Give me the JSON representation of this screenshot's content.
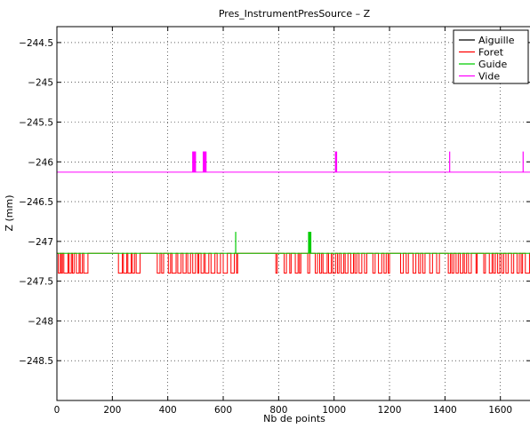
{
  "chart_data": {
    "type": "line",
    "title": "Pres_InstrumentPresSource – Z",
    "xlabel": "Nb de points",
    "ylabel": "Z (mm)",
    "xlim": [
      0,
      1710
    ],
    "ylim": [
      -249,
      -244.3
    ],
    "x_ticks": [
      0,
      200,
      400,
      600,
      800,
      1000,
      1200,
      1400,
      1600
    ],
    "y_ticks": [
      -244.5,
      -245,
      -245.5,
      -246,
      -246.5,
      -247,
      -247.5,
      -248,
      -248.5
    ],
    "y_tick_labels": [
      "−244.5",
      "−245",
      "−245.5",
      "−246",
      "−246.5",
      "−247",
      "−247.5",
      "−248",
      "−248.5"
    ],
    "grid": true,
    "legend_position": "top-right",
    "series": [
      {
        "name": "Aiguille",
        "color": "#000000",
        "points": []
      },
      {
        "name": "Foret",
        "color": "#ff0000",
        "base": -247.15,
        "low": -247.4,
        "low_intervals": [
          [
            5,
            12
          ],
          [
            16,
            20
          ],
          [
            25,
            40
          ],
          [
            44,
            52
          ],
          [
            56,
            62
          ],
          [
            70,
            80
          ],
          [
            84,
            92
          ],
          [
            97,
            112
          ],
          [
            222,
            236
          ],
          [
            240,
            252
          ],
          [
            256,
            268
          ],
          [
            272,
            280
          ],
          [
            286,
            300
          ],
          [
            362,
            372
          ],
          [
            378,
            385
          ],
          [
            402,
            410
          ],
          [
            415,
            430
          ],
          [
            436,
            448
          ],
          [
            455,
            466
          ],
          [
            472,
            482
          ],
          [
            490,
            500
          ],
          [
            508,
            512
          ],
          [
            520,
            530
          ],
          [
            535,
            548
          ],
          [
            556,
            570
          ],
          [
            578,
            590
          ],
          [
            600,
            615
          ],
          [
            628,
            640
          ],
          [
            648,
            652
          ],
          [
            790,
            795
          ],
          [
            820,
            828
          ],
          [
            840,
            845
          ],
          [
            860,
            870
          ],
          [
            875,
            880
          ],
          [
            905,
            912
          ],
          [
            932,
            940
          ],
          [
            948,
            955
          ],
          [
            960,
            975
          ],
          [
            980,
            990
          ],
          [
            995,
            1005
          ],
          [
            1012,
            1018
          ],
          [
            1025,
            1035
          ],
          [
            1040,
            1050
          ],
          [
            1060,
            1070
          ],
          [
            1075,
            1082
          ],
          [
            1090,
            1100
          ],
          [
            1110,
            1118
          ],
          [
            1140,
            1148
          ],
          [
            1160,
            1172
          ],
          [
            1180,
            1188
          ],
          [
            1195,
            1200
          ],
          [
            1240,
            1250
          ],
          [
            1260,
            1268
          ],
          [
            1285,
            1295
          ],
          [
            1305,
            1312
          ],
          [
            1320,
            1328
          ],
          [
            1345,
            1355
          ],
          [
            1370,
            1380
          ],
          [
            1412,
            1420
          ],
          [
            1425,
            1432
          ],
          [
            1440,
            1448
          ],
          [
            1455,
            1465
          ],
          [
            1470,
            1478
          ],
          [
            1485,
            1495
          ],
          [
            1512,
            1516
          ],
          [
            1540,
            1546
          ],
          [
            1560,
            1570
          ],
          [
            1575,
            1582
          ],
          [
            1590,
            1598
          ],
          [
            1605,
            1612
          ],
          [
            1620,
            1628
          ],
          [
            1640,
            1648
          ],
          [
            1660,
            1668
          ],
          [
            1675,
            1680
          ],
          [
            1690,
            1705
          ]
        ]
      },
      {
        "name": "Guide",
        "color": "#00cc00",
        "base": -247.15,
        "spikes": [
          [
            645,
            -246.88
          ],
          [
            908,
            -246.88
          ],
          [
            910,
            -246.88
          ],
          [
            912,
            -246.88
          ],
          [
            914,
            -246.88
          ],
          [
            916,
            -246.88
          ]
        ]
      },
      {
        "name": "Vide",
        "color": "#ff00ff",
        "base": -246.13,
        "spikes": [
          [
            490,
            -245.87
          ],
          [
            492,
            -245.87
          ],
          [
            494,
            -245.87
          ],
          [
            496,
            -245.87
          ],
          [
            498,
            -245.87
          ],
          [
            500,
            -245.87
          ],
          [
            528,
            -245.87
          ],
          [
            530,
            -245.87
          ],
          [
            532,
            -245.87
          ],
          [
            534,
            -245.87
          ],
          [
            536,
            -245.87
          ],
          [
            538,
            -245.87
          ],
          [
            1005,
            -245.87
          ],
          [
            1007,
            -245.87
          ],
          [
            1009,
            -245.87
          ],
          [
            1417,
            -245.87
          ],
          [
            1682,
            -245.87
          ]
        ]
      }
    ]
  }
}
